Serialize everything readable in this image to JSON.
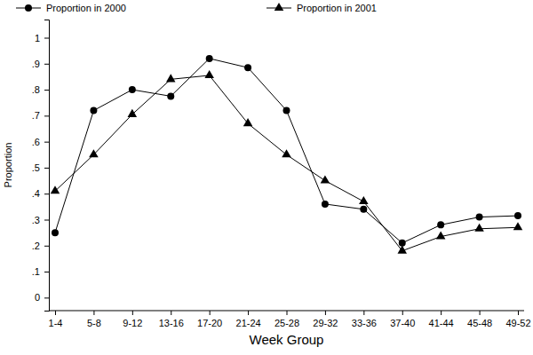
{
  "chart_data": {
    "type": "line",
    "x_label": "Week Group",
    "y_label": "Proportion",
    "categories": [
      "1-4",
      "5-8",
      "9-12",
      "13-16",
      "17-20",
      "21-24",
      "25-28",
      "29-32",
      "33-36",
      "37-40",
      "41-44",
      "45-48",
      "49-52"
    ],
    "series": [
      {
        "name": "Proportion in 2000",
        "color": "#000000",
        "marker": "circle",
        "line_style": "solid",
        "values": [
          0.25,
          0.72,
          0.8,
          0.775,
          0.92,
          0.885,
          0.72,
          0.36,
          0.34,
          0.21,
          0.28,
          0.31,
          0.315
        ]
      },
      {
        "name": "Proportion in 2001",
        "color": "#000000",
        "marker": "triangle",
        "line_style": "solid",
        "values": [
          0.41,
          0.55,
          0.705,
          0.84,
          0.855,
          0.67,
          0.55,
          0.45,
          0.37,
          0.18,
          0.235,
          0.265,
          0.27
        ]
      }
    ],
    "ylim": [
      -0.05,
      1.07
    ],
    "yticks": [
      0,
      {
        "value": 0.1,
        "label": ".1"
      },
      {
        "value": 0.2,
        "label": ".2"
      },
      {
        "value": 0.3,
        "label": ".3"
      },
      {
        "value": 0.4,
        "label": ".4"
      },
      {
        "value": 0.5,
        "label": ".5"
      },
      {
        "value": 0.6,
        "label": ".6"
      },
      {
        "value": 0.7,
        "label": ".7"
      },
      {
        "value": 0.8,
        "label": ".8"
      },
      {
        "value": 0.9,
        "label": ".9"
      },
      1
    ],
    "grid": false,
    "legend": "top"
  }
}
